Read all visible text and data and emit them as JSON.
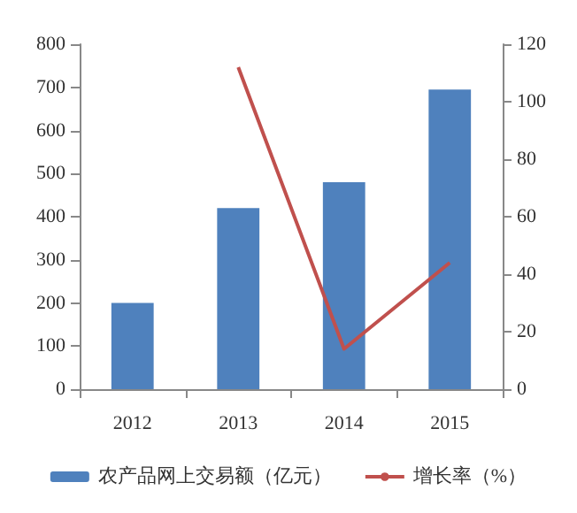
{
  "chart_data": {
    "type": "bar",
    "categories": [
      "2012",
      "2013",
      "2014",
      "2015"
    ],
    "series": [
      {
        "name": "农产品网上交易额（亿元）",
        "color": "#4f81bd",
        "values": [
          200,
          420,
          480,
          695
        ]
      },
      {
        "name": "增长率（%）",
        "type": "line",
        "axis": "y2",
        "color": "#c0504d",
        "values": [
          null,
          112,
          14,
          44
        ]
      }
    ],
    "ylim": [
      0,
      800
    ],
    "yticks": [
      0,
      100,
      200,
      300,
      400,
      500,
      600,
      700,
      800
    ],
    "y2lim": [
      0,
      120
    ],
    "y2ticks": [
      0,
      20,
      40,
      60,
      80,
      100,
      120
    ],
    "grid": false,
    "legend": "bottom",
    "marker": "none"
  }
}
